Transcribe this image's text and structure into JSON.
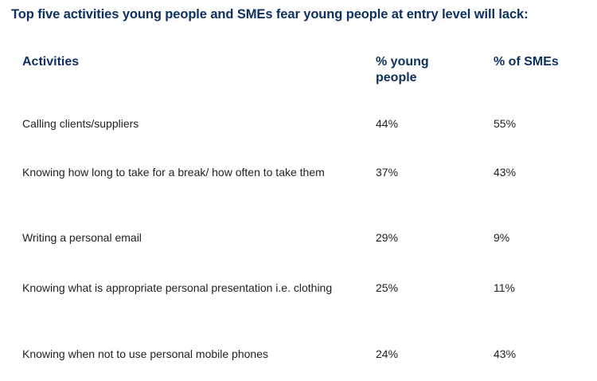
{
  "title": "Top five activities young people and SMEs fear young people at entry level will lack:",
  "table": {
    "headers": {
      "activity": "Activities",
      "young_people": "% young people",
      "smes": "% of SMEs"
    },
    "rows": [
      {
        "activity": "Calling clients/suppliers",
        "young_people": "44%",
        "smes": "55%"
      },
      {
        "activity": "Knowing how long to take for a break/ how often to take them",
        "young_people": "37%",
        "smes": "43%"
      },
      {
        "activity": "Writing a personal email",
        "young_people": "29%",
        "smes": "9%"
      },
      {
        "activity": "Knowing what is appropriate personal presentation i.e. clothing",
        "young_people": "25%",
        "smes": "11%"
      },
      {
        "activity": "Knowing when not to use personal mobile phones",
        "young_people": "24%",
        "smes": "43%"
      }
    ]
  }
}
